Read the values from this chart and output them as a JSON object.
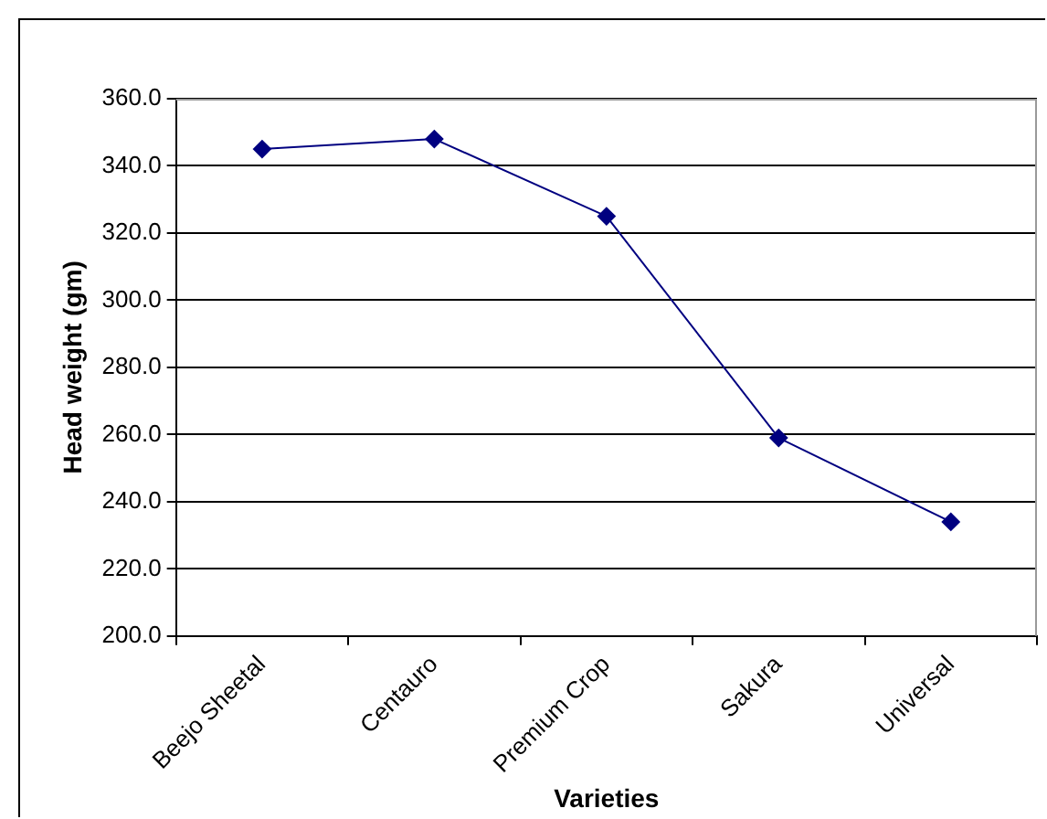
{
  "chart_data": {
    "type": "line",
    "xlabel": "Varieties",
    "ylabel": "Head weight (gm)",
    "categories": [
      "Beejo Sheetal",
      "Centauro",
      "Premium Crop",
      "Sakura",
      "Universal"
    ],
    "series": [
      {
        "color": "#000080",
        "values": [
          345,
          348,
          325,
          259,
          234
        ]
      }
    ],
    "ylim": [
      200,
      360
    ],
    "yticks": [
      {
        "value": 200,
        "label": "200.0"
      },
      {
        "value": 220,
        "label": "220.0"
      },
      {
        "value": 240,
        "label": "240.0"
      },
      {
        "value": 260,
        "label": "260.0"
      },
      {
        "value": 280,
        "label": "280.0"
      },
      {
        "value": 300,
        "label": "300.0"
      },
      {
        "value": 320,
        "label": "320.0"
      },
      {
        "value": 340,
        "label": "340.0"
      },
      {
        "value": 360,
        "label": "360.0"
      }
    ],
    "grid": "y",
    "legend": false,
    "marker": "diamond",
    "line_style": "solid"
  }
}
